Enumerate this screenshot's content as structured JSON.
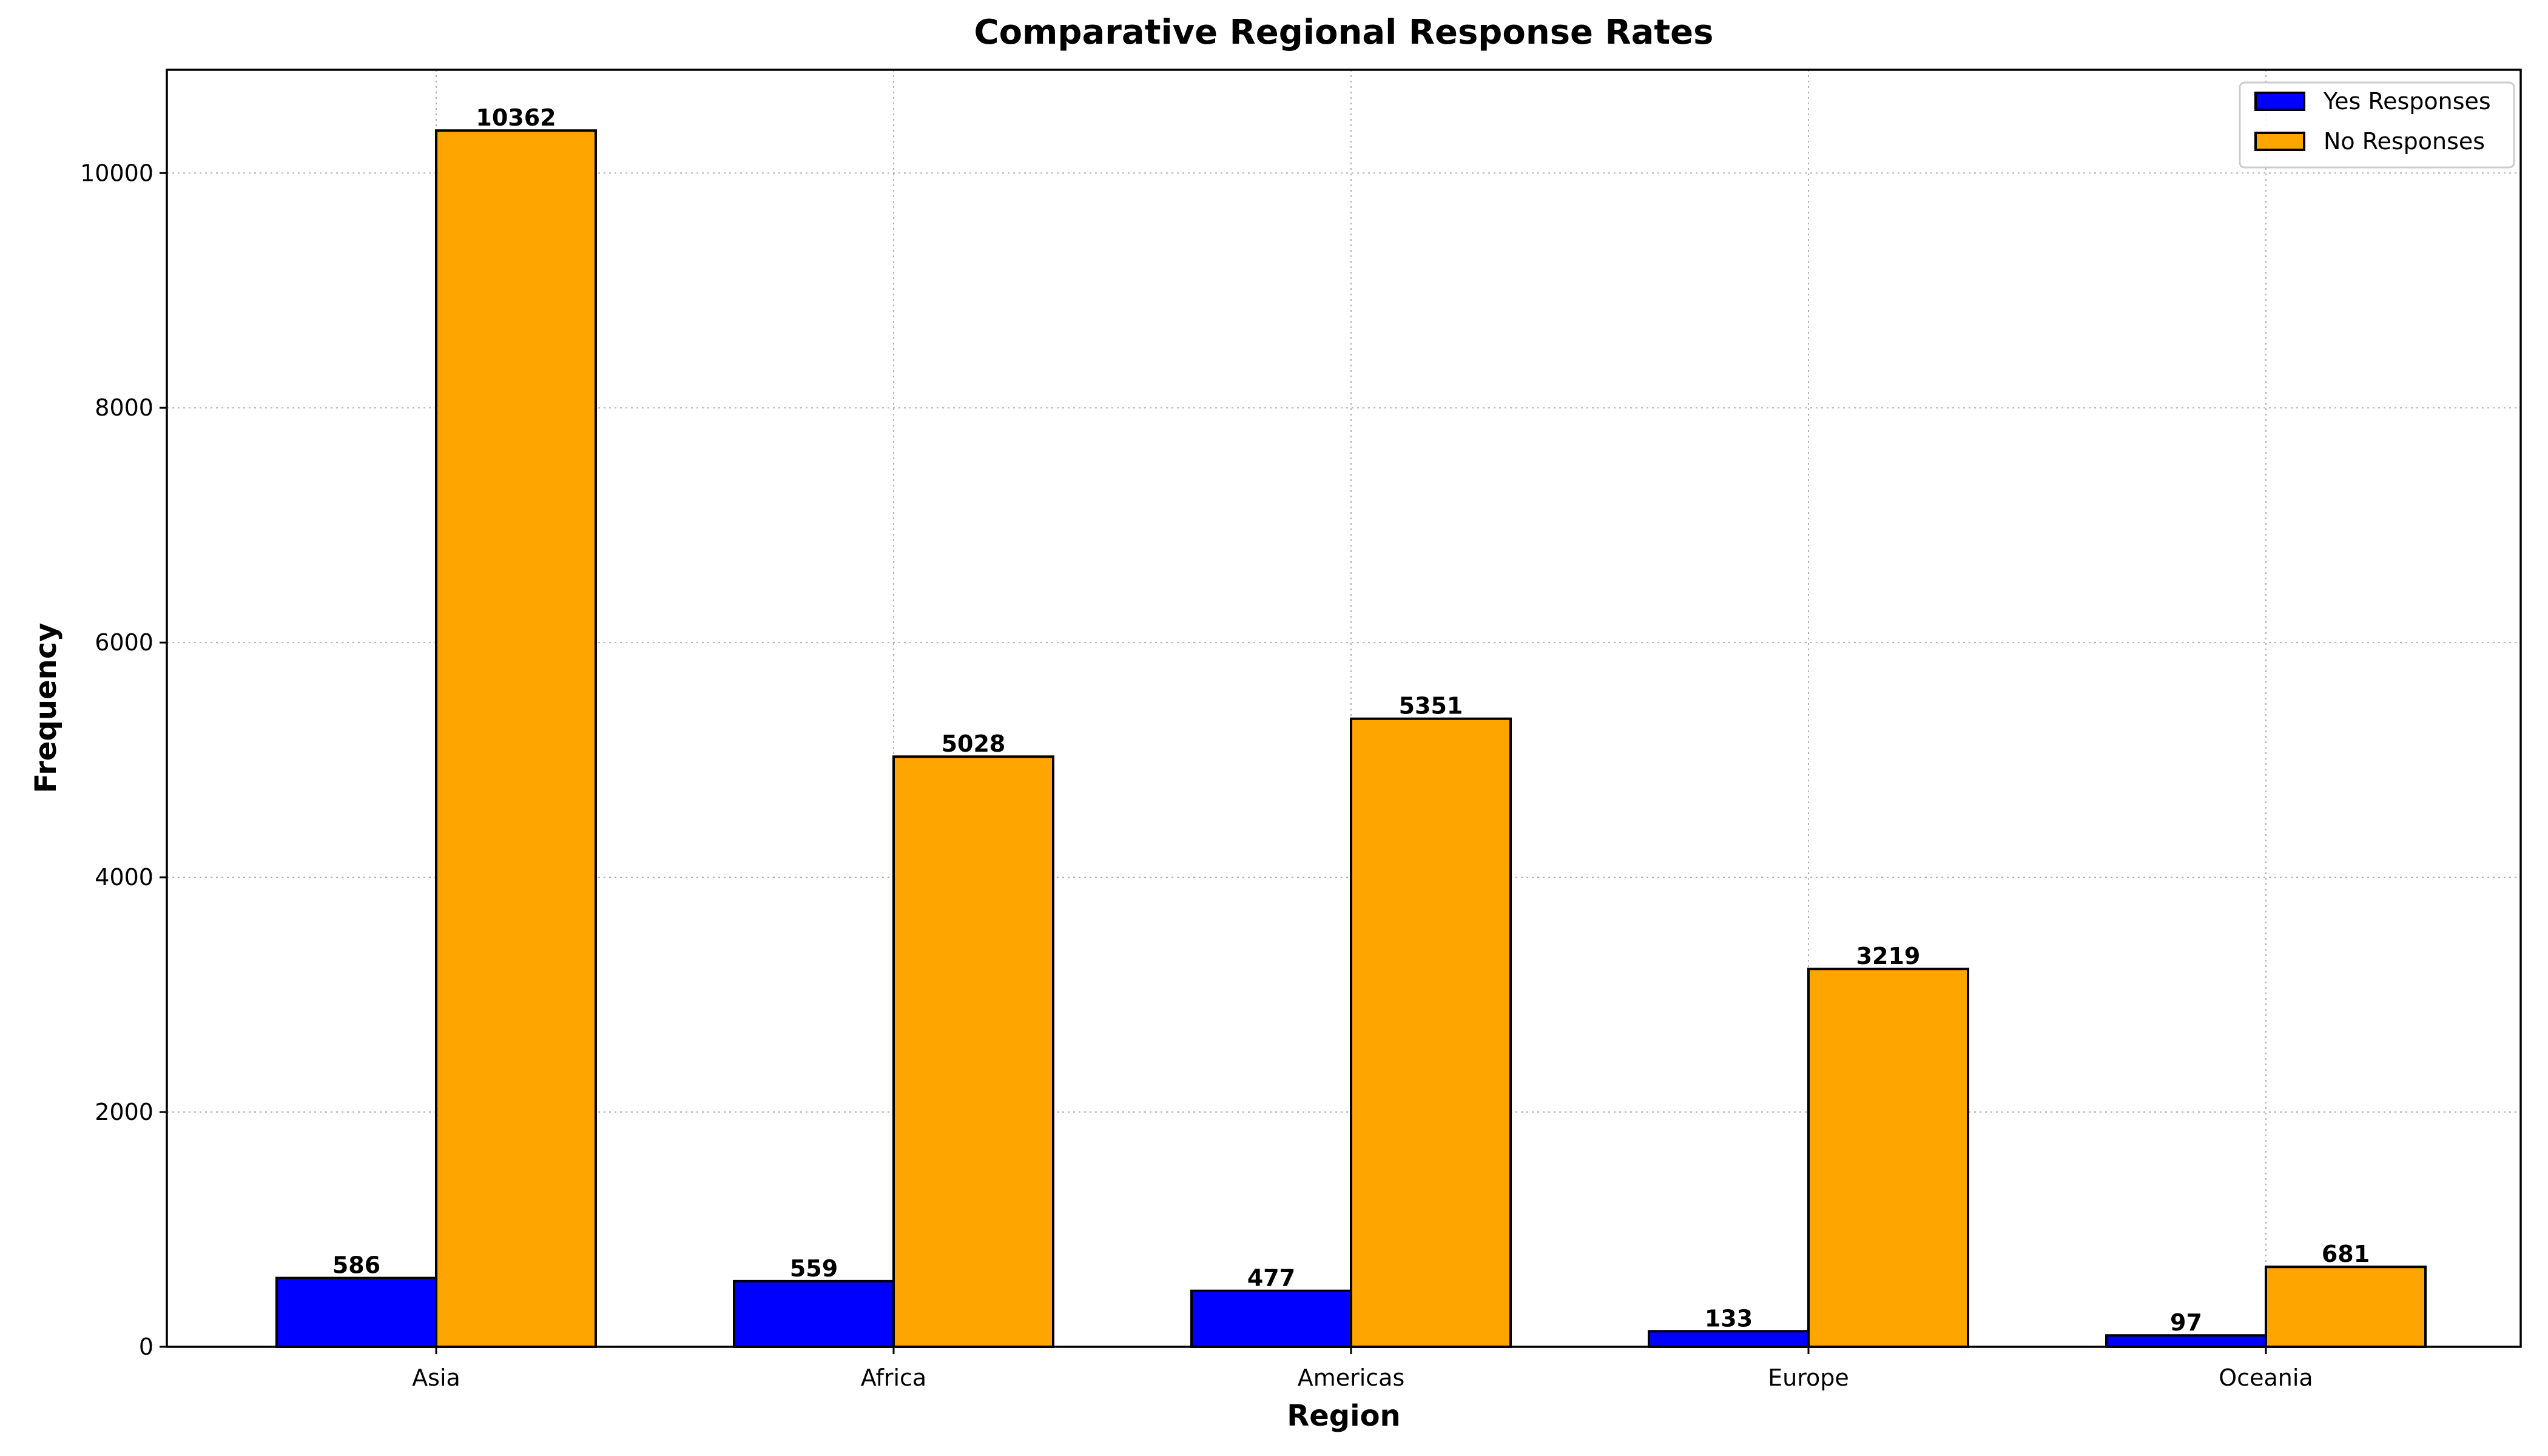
{
  "chart_data": {
    "type": "bar",
    "title": "Comparative Regional Response Rates",
    "xlabel": "Region",
    "ylabel": "Frequency",
    "categories": [
      "Asia",
      "Africa",
      "Americas",
      "Europe",
      "Oceania"
    ],
    "series": [
      {
        "name": "Yes Responses",
        "color": "#0000ff",
        "values": [
          586,
          559,
          477,
          133,
          97
        ]
      },
      {
        "name": "No Responses",
        "color": "#ffa500",
        "values": [
          10362,
          5028,
          5351,
          3219,
          681
        ]
      }
    ],
    "ylim": [
      0,
      10880
    ],
    "yticks": [
      0,
      2000,
      4000,
      6000,
      8000,
      10000
    ],
    "grid": true,
    "legend_position": "top-right",
    "data_labels": true
  }
}
